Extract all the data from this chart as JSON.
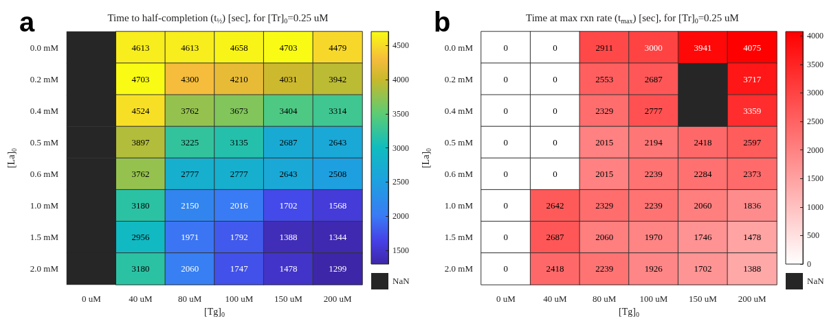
{
  "chart_data": [
    {
      "type": "heatmap",
      "title": "Time to half-completion (t$_{½}$) [sec], for [Tr]$_{0}$=0.25 uM",
      "xlabel": "[Tg]$_{0}$",
      "ylabel": "[La]$_{0}$",
      "categories": [
        "0 uM",
        "40 uM",
        "80 uM",
        "100 uM",
        "150 uM",
        "200 uM"
      ],
      "y_categories": [
        "0.0 mM",
        "0.2 mM",
        "0.4 mM",
        "0.5 mM",
        "0.6 mM",
        "1.0 mM",
        "1.5 mM",
        "2.0 mM"
      ],
      "cells": [
        [
          null,
          4613,
          4613,
          4658,
          4703,
          4479
        ],
        [
          null,
          4703,
          4300,
          4210,
          4031,
          3942
        ],
        [
          null,
          4524,
          3762,
          3673,
          3404,
          3314
        ],
        [
          null,
          3897,
          3225,
          3135,
          2687,
          2643
        ],
        [
          null,
          3762,
          2777,
          2777,
          2643,
          2508
        ],
        [
          null,
          3180,
          2150,
          2016,
          1702,
          1568
        ],
        [
          null,
          2956,
          1971,
          1792,
          1388,
          1344
        ],
        [
          null,
          3180,
          2060,
          1747,
          1478,
          1299
        ]
      ],
      "clim": [
        1299,
        4703
      ],
      "cticks": [
        1500,
        2000,
        2500,
        3000,
        3500,
        4000,
        4500
      ],
      "data_labels": true,
      "annotations": [
        "a",
        "NaN"
      ]
    },
    {
      "type": "heatmap",
      "title": "Time at max rxn rate (t$_{max}$) [sec], for [Tr]$_{0}$=0.25 uM",
      "xlabel": "[Tg]$_{0}$",
      "ylabel": "[La]$_{0}$",
      "categories": [
        "0 uM",
        "40 uM",
        "80 uM",
        "100 uM",
        "150 uM",
        "200 uM"
      ],
      "y_categories": [
        "0.0 mM",
        "0.2 mM",
        "0.4 mM",
        "0.5 mM",
        "0.6 mM",
        "1.0 mM",
        "1.5 mM",
        "2.0 mM"
      ],
      "cells": [
        [
          0,
          0,
          2911,
          3000,
          3941,
          4075
        ],
        [
          0,
          0,
          2553,
          2687,
          null,
          3717
        ],
        [
          0,
          0,
          2329,
          2777,
          null,
          3359
        ],
        [
          0,
          0,
          2015,
          2194,
          2418,
          2597
        ],
        [
          0,
          0,
          2015,
          2239,
          2284,
          2373
        ],
        [
          0,
          2642,
          2329,
          2239,
          2060,
          1836
        ],
        [
          0,
          2687,
          2060,
          1970,
          1746,
          1478
        ],
        [
          0,
          2418,
          2239,
          1926,
          1702,
          1388
        ]
      ],
      "clim": [
        0,
        4075
      ],
      "cticks": [
        0,
        500,
        1000,
        1500,
        2000,
        2500,
        3000,
        3500,
        4000
      ],
      "color": "#ff0000",
      "data_labels": true,
      "annotations": [
        "b",
        "NaN"
      ]
    }
  ]
}
